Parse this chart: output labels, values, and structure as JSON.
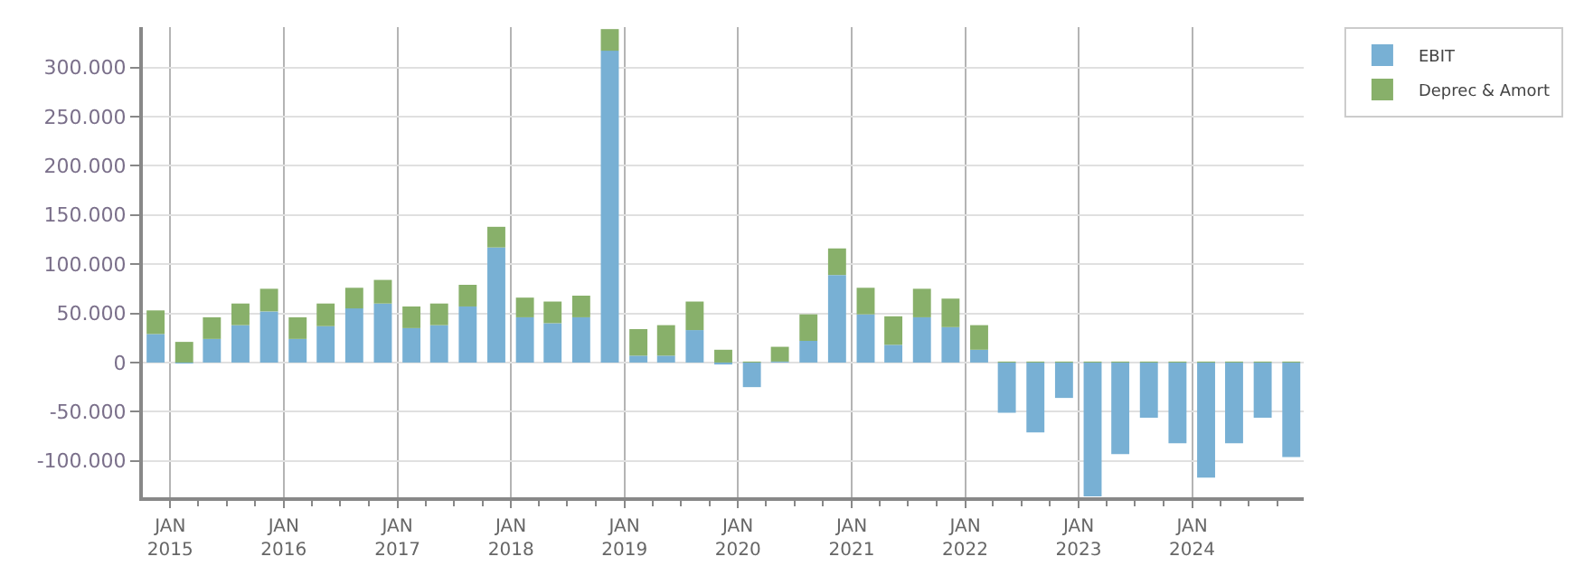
{
  "chart_data": {
    "type": "bar",
    "stacked": true,
    "legend": "top right",
    "grid": true,
    "x": [
      "2014-11-15",
      "2015-02-15",
      "2015-05-15",
      "2015-08-15",
      "2015-11-15",
      "2016-02-15",
      "2016-05-15",
      "2016-08-15",
      "2016-11-15",
      "2017-02-15",
      "2017-05-15",
      "2017-08-15",
      "2017-11-15",
      "2018-02-15",
      "2018-05-15",
      "2018-08-15",
      "2018-11-15",
      "2019-02-15",
      "2019-05-15",
      "2019-08-15",
      "2019-11-15",
      "2020-02-15",
      "2020-05-15",
      "2020-08-15",
      "2020-11-15",
      "2021-02-15",
      "2021-05-15",
      "2021-08-15",
      "2021-11-15",
      "2022-02-15",
      "2022-05-15",
      "2022-08-15",
      "2022-11-15",
      "2023-02-15",
      "2023-05-15",
      "2023-08-15",
      "2023-11-15",
      "2024-02-15",
      "2024-05-15",
      "2024-08-15",
      "2024-11-15"
    ],
    "series": [
      {
        "name": "EBIT",
        "color": "#78b0d4",
        "values": [
          29000,
          -1000,
          24000,
          38000,
          52000,
          24000,
          37000,
          55000,
          60000,
          35000,
          38000,
          57000,
          117000,
          46000,
          40000,
          46000,
          317000,
          7000,
          7000,
          33000,
          -2000,
          -25000,
          1000,
          22000,
          89000,
          49000,
          18000,
          46000,
          36000,
          13000,
          -51000,
          -71000,
          -36000,
          -136000,
          -93000,
          -56000,
          -82000,
          -117000,
          -82000,
          -56000,
          -96000
        ]
      },
      {
        "name": "Deprec & Amort",
        "color": "#88b06a",
        "values": [
          24000,
          21000,
          22000,
          22000,
          23000,
          22000,
          23000,
          21000,
          24000,
          22000,
          22000,
          22000,
          21000,
          20000,
          22000,
          22000,
          22000,
          27000,
          31000,
          29000,
          13000,
          1000,
          15000,
          27000,
          27000,
          27000,
          29000,
          29000,
          29000,
          25000,
          1000,
          1000,
          1000,
          1000,
          1000,
          1000,
          1000,
          1000,
          1000,
          1000,
          1000
        ]
      }
    ],
    "xlim": [
      "2014-10-05",
      "2024-12-25"
    ],
    "xticks": [
      {
        "value": "2015-01-01",
        "label": "JAN\n2015"
      },
      {
        "value": "2016-01-01",
        "label": "JAN\n2016"
      },
      {
        "value": "2017-01-01",
        "label": "JAN\n2017"
      },
      {
        "value": "2018-01-01",
        "label": "JAN\n2018"
      },
      {
        "value": "2019-01-01",
        "label": "JAN\n2019"
      },
      {
        "value": "2020-01-01",
        "label": "JAN\n2020"
      },
      {
        "value": "2021-01-01",
        "label": "JAN\n2021"
      },
      {
        "value": "2022-01-01",
        "label": "JAN\n2022"
      },
      {
        "value": "2023-01-01",
        "label": "JAN\n2023"
      },
      {
        "value": "2024-01-01",
        "label": "JAN\n2024"
      }
    ],
    "ylim": [
      -137000,
      341000
    ],
    "yticks": [
      {
        "value": -100000,
        "label": "-100.000"
      },
      {
        "value": -50000,
        "label": "-50.000"
      },
      0,
      {
        "value": 50000,
        "label": "50.000"
      },
      {
        "value": 100000,
        "label": "100.000"
      },
      {
        "value": 150000,
        "label": "150.000"
      },
      {
        "value": 200000,
        "label": "200.000"
      },
      {
        "value": 250000,
        "label": "250.000"
      },
      {
        "value": 300000,
        "label": "300.000"
      }
    ]
  }
}
